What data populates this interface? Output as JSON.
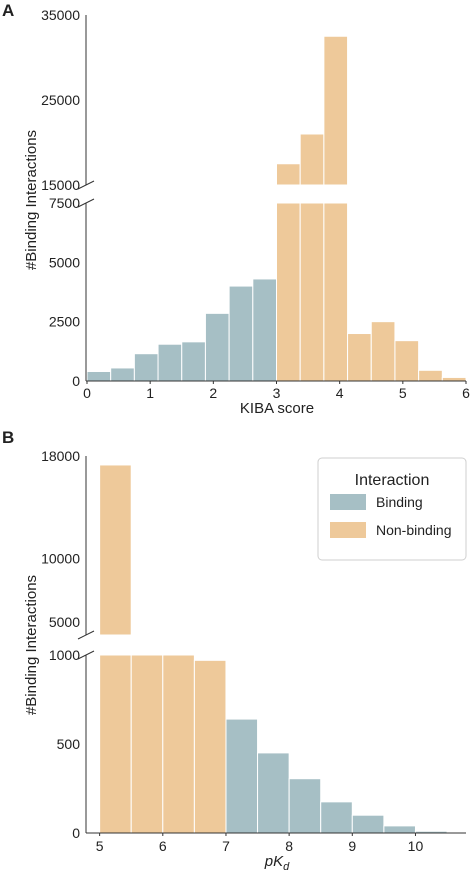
{
  "chart_data": [
    {
      "panel_label": "A",
      "type": "bar",
      "xlabel": "KIBA score",
      "ylabel": "#Binding Interactions",
      "xlim": [
        0,
        6
      ],
      "x_ticks": [
        "0",
        "1",
        "2",
        "3",
        "4",
        "5",
        "6"
      ],
      "y_ticks_lower": [
        "0",
        "2500",
        "5000",
        "7500"
      ],
      "y_ticks_upper": [
        "15000",
        "25000",
        "35000"
      ],
      "axis_break": {
        "lower_ylim": [
          0,
          7500
        ],
        "upper_ylim": [
          15000,
          35000
        ]
      },
      "bin_width": 0.375,
      "series": [
        {
          "name": "Binding",
          "bins_start": [
            0,
            0.375,
            0.75,
            1.125,
            1.5,
            1.875,
            2.25,
            2.625
          ],
          "values": [
            400,
            550,
            1150,
            1550,
            1650,
            2850,
            4000,
            4300
          ]
        },
        {
          "name": "Non-binding",
          "bins_start": [
            3.0,
            3.375,
            3.75,
            4.125,
            4.5,
            4.875,
            5.25,
            5.625
          ],
          "values": [
            17500,
            21000,
            32500,
            2000,
            2500,
            1700,
            450,
            150
          ]
        }
      ]
    },
    {
      "panel_label": "B",
      "type": "bar",
      "xlabel": "pK",
      "xlabel_sub": "d",
      "ylabel": "#Binding Interactions",
      "xlim": [
        4.8,
        10.8
      ],
      "x_ticks": [
        "5",
        "6",
        "7",
        "8",
        "9",
        "10"
      ],
      "y_ticks_lower": [
        "0",
        "500",
        "1000"
      ],
      "y_ticks_upper": [
        "5000",
        "10000",
        "18000"
      ],
      "axis_break": {
        "lower_ylim": [
          0,
          1000
        ],
        "upper_ylim": [
          4000,
          18000
        ]
      },
      "bin_width": 0.5,
      "legend": {
        "title": "Interaction",
        "placement": "top-right"
      },
      "series": [
        {
          "name": "Binding",
          "bins_start": [
            7.0,
            7.5,
            8.0,
            8.5,
            9.0,
            9.5,
            10.0
          ],
          "values": [
            640,
            450,
            305,
            175,
            100,
            40,
            10
          ]
        },
        {
          "name": "Non-binding",
          "bins_start": [
            5.0,
            5.5,
            6.0,
            6.5
          ],
          "values": [
            17300,
            1000,
            1000,
            970
          ]
        }
      ]
    }
  ],
  "colors": {
    "Binding": "#a6bfc5",
    "Non-binding": "#eec99a",
    "axis": "#333333"
  }
}
